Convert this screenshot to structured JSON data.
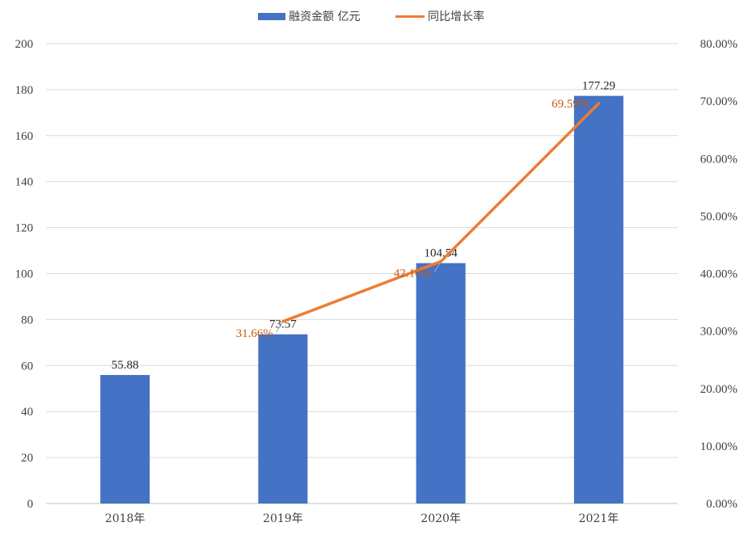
{
  "chart_data": {
    "type": "bar",
    "categories": [
      "2018年",
      "2019年",
      "2020年",
      "2021年"
    ],
    "series": [
      {
        "name": "融资金额 亿元",
        "type": "bar",
        "axis": "left",
        "values": [
          55.88,
          73.57,
          104.54,
          177.29
        ],
        "labels": [
          "55.88",
          "73.57",
          "104.54",
          "177.29"
        ],
        "color": "#4472c4"
      },
      {
        "name": "同比增长率",
        "type": "line",
        "axis": "right",
        "values": [
          null,
          31.66,
          42.1,
          69.59
        ],
        "labels": [
          "",
          "31.66%",
          "42.10%",
          "69.59%"
        ],
        "color": "#ed7d31",
        "label_color": "#c55a11"
      }
    ],
    "y_left": {
      "min": 0,
      "max": 200,
      "step": 20,
      "ticks": [
        "0",
        "20",
        "40",
        "60",
        "80",
        "100",
        "120",
        "140",
        "160",
        "180",
        "200"
      ]
    },
    "y_right": {
      "min": 0,
      "max": 80,
      "step": 10,
      "ticks": [
        "0.00%",
        "10.00%",
        "20.00%",
        "30.00%",
        "40.00%",
        "50.00%",
        "60.00%",
        "70.00%",
        "80.00%"
      ]
    },
    "grid": true,
    "legend_position": "top-center",
    "grid_color": "#d9d9d9",
    "axis_color": "#bfbfbf"
  }
}
